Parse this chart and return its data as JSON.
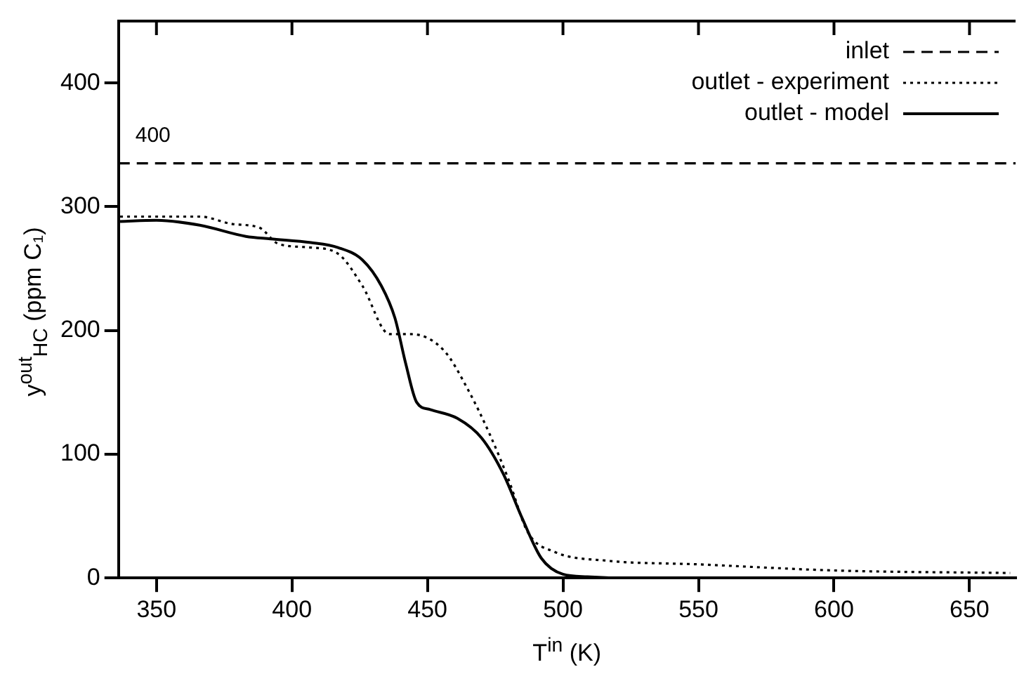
{
  "chart_data": {
    "type": "line",
    "xlabel": "T$^{in}$ (K)",
    "ylabel": "y$^{out}$$_{HC}$ (ppm C₁)",
    "xlim": [
      336,
      667
    ],
    "xticks": [
      350,
      400,
      450,
      500,
      550,
      600,
      650
    ],
    "ylim": [
      0,
      450
    ],
    "yticks": [
      0,
      100,
      200,
      300,
      400
    ],
    "grid": false,
    "legend": "top right",
    "marker": "none",
    "annotations": [
      "400"
    ],
    "series": [
      {
        "name": "inlet",
        "color": "#000000",
        "line_style": "dashed",
        "x": [
          336,
          667
        ],
        "values": [
          335,
          335
        ]
      },
      {
        "name": "outlet - experiment",
        "color": "#000000",
        "line_style": "dotted",
        "x": [
          336.6,
          366,
          378,
          388,
          395,
          407,
          417,
          426,
          436,
          444,
          456,
          465,
          473,
          480,
          487,
          497,
          516,
          550,
          601,
          665
        ],
        "values": [
          292,
          292,
          286,
          283,
          270,
          267,
          262,
          236,
          197,
          197,
          184,
          152,
          116,
          79,
          37,
          21,
          14,
          11,
          6,
          4
        ]
      },
      {
        "name": "outlet - model",
        "color": "#000000",
        "line_style": "solid",
        "x": [
          336.6,
          350,
          366,
          383,
          392,
          407,
          417,
          426,
          433,
          438,
          442,
          446,
          451,
          461,
          470,
          478,
          485,
          492,
          500,
          509,
          518
        ],
        "values": [
          288,
          289,
          285,
          276,
          274,
          271,
          267,
          257,
          236,
          210,
          173,
          142,
          136,
          129,
          113,
          84,
          48,
          16,
          3,
          1,
          0
        ]
      }
    ]
  }
}
